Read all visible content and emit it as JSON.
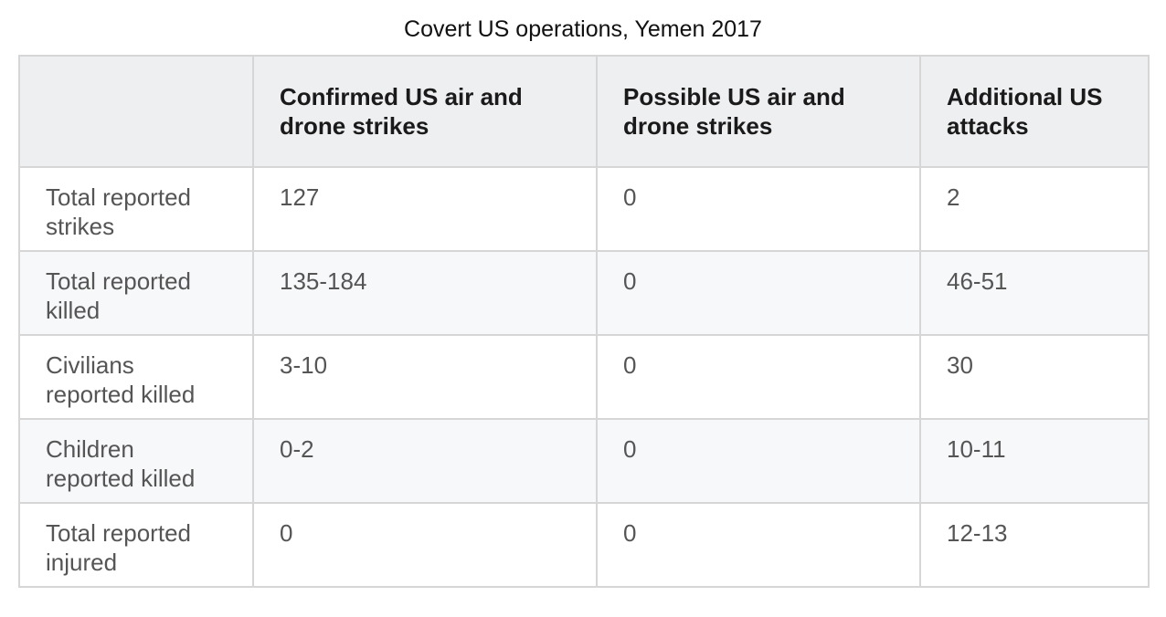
{
  "title": "Covert US operations, Yemen 2017",
  "table": {
    "headers": [
      "",
      "Confirmed US air and drone strikes",
      "Possible US air and drone strikes",
      "Additional US attacks"
    ],
    "rows": [
      {
        "label": "Total reported strikes",
        "values": [
          "127",
          "0",
          "2"
        ]
      },
      {
        "label": "Total reported killed",
        "values": [
          "135-184",
          "0",
          "46-51"
        ]
      },
      {
        "label": "Civilians reported killed",
        "values": [
          "3-10",
          "0",
          "30"
        ]
      },
      {
        "label": "Children reported killed",
        "values": [
          "0-2",
          "0",
          "10-11"
        ]
      },
      {
        "label": "Total reported injured",
        "values": [
          "0",
          "0",
          "12-13"
        ]
      }
    ]
  },
  "colors": {
    "header_bg": "#eeeff1",
    "stripe_bg": "#f7f8f9",
    "border": "#d6d6d6",
    "header_text": "#1a1a1a",
    "body_text": "#555555"
  }
}
